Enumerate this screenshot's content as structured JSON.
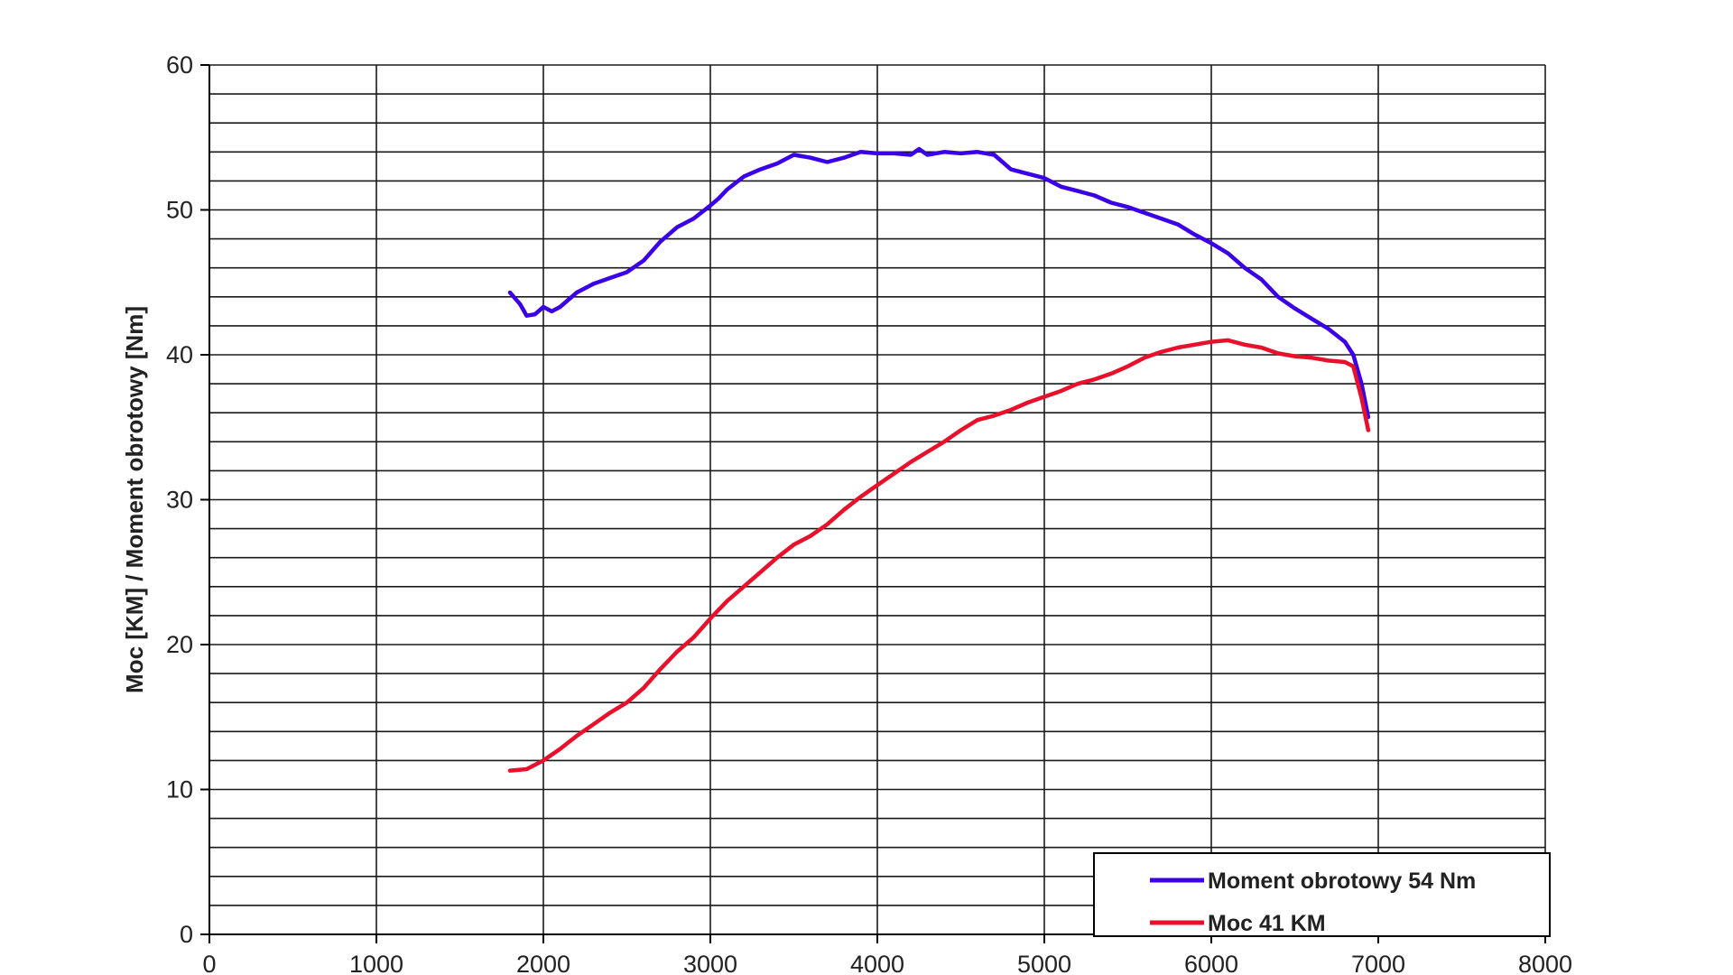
{
  "chart_data": {
    "type": "line",
    "title": "",
    "xlabel": "",
    "ylabel": "Moc [KM] / Moment obrotowy [Nm]",
    "xlim": [
      0,
      8000
    ],
    "ylim": [
      0,
      60
    ],
    "x_ticks": [
      "0",
      "1000",
      "2000",
      "3000",
      "4000",
      "5000",
      "6000",
      "7000",
      "8000"
    ],
    "y_ticks": [
      "0",
      "10",
      "20",
      "30",
      "40",
      "50",
      "60"
    ],
    "grid": {
      "vertical_step": 1000,
      "horizontal_step": 2
    },
    "legend_position": "bottom-right",
    "series": [
      {
        "name": "Moment obrotowy 54 Nm",
        "color": "#3a00e8",
        "points": [
          [
            1800,
            44.3
          ],
          [
            1860,
            43.5
          ],
          [
            1900,
            42.7
          ],
          [
            1950,
            42.8
          ],
          [
            2000,
            43.3
          ],
          [
            2050,
            43.0
          ],
          [
            2100,
            43.3
          ],
          [
            2200,
            44.3
          ],
          [
            2300,
            44.9
          ],
          [
            2400,
            45.3
          ],
          [
            2500,
            45.7
          ],
          [
            2600,
            46.5
          ],
          [
            2700,
            47.8
          ],
          [
            2800,
            48.8
          ],
          [
            2900,
            49.4
          ],
          [
            3000,
            50.3
          ],
          [
            3050,
            50.8
          ],
          [
            3100,
            51.4
          ],
          [
            3200,
            52.3
          ],
          [
            3300,
            52.8
          ],
          [
            3400,
            53.2
          ],
          [
            3500,
            53.8
          ],
          [
            3600,
            53.6
          ],
          [
            3700,
            53.3
          ],
          [
            3800,
            53.6
          ],
          [
            3900,
            54.0
          ],
          [
            4000,
            53.9
          ],
          [
            4100,
            53.9
          ],
          [
            4200,
            53.8
          ],
          [
            4250,
            54.2
          ],
          [
            4300,
            53.8
          ],
          [
            4400,
            54.0
          ],
          [
            4500,
            53.9
          ],
          [
            4600,
            54.0
          ],
          [
            4700,
            53.8
          ],
          [
            4800,
            52.8
          ],
          [
            4900,
            52.5
          ],
          [
            5000,
            52.2
          ],
          [
            5100,
            51.6
          ],
          [
            5200,
            51.3
          ],
          [
            5300,
            51.0
          ],
          [
            5400,
            50.5
          ],
          [
            5500,
            50.2
          ],
          [
            5600,
            49.8
          ],
          [
            5700,
            49.4
          ],
          [
            5800,
            49.0
          ],
          [
            5900,
            48.3
          ],
          [
            6000,
            47.7
          ],
          [
            6100,
            47.0
          ],
          [
            6200,
            46.0
          ],
          [
            6300,
            45.2
          ],
          [
            6400,
            44.0
          ],
          [
            6500,
            43.2
          ],
          [
            6600,
            42.5
          ],
          [
            6700,
            41.8
          ],
          [
            6800,
            40.9
          ],
          [
            6850,
            40.0
          ],
          [
            6900,
            38.0
          ],
          [
            6940,
            35.7
          ]
        ]
      },
      {
        "name": "Moc 41 KM",
        "color": "#e8102a",
        "points": [
          [
            1800,
            11.3
          ],
          [
            1900,
            11.4
          ],
          [
            2000,
            12.0
          ],
          [
            2100,
            12.8
          ],
          [
            2200,
            13.7
          ],
          [
            2300,
            14.5
          ],
          [
            2400,
            15.3
          ],
          [
            2500,
            16.0
          ],
          [
            2600,
            17.0
          ],
          [
            2700,
            18.3
          ],
          [
            2800,
            19.5
          ],
          [
            2900,
            20.5
          ],
          [
            3000,
            21.8
          ],
          [
            3100,
            23.0
          ],
          [
            3200,
            24.0
          ],
          [
            3300,
            25.0
          ],
          [
            3400,
            26.0
          ],
          [
            3500,
            26.9
          ],
          [
            3600,
            27.5
          ],
          [
            3700,
            28.3
          ],
          [
            3800,
            29.3
          ],
          [
            3900,
            30.2
          ],
          [
            4000,
            31.0
          ],
          [
            4100,
            31.8
          ],
          [
            4200,
            32.6
          ],
          [
            4300,
            33.3
          ],
          [
            4400,
            34.0
          ],
          [
            4500,
            34.8
          ],
          [
            4600,
            35.5
          ],
          [
            4700,
            35.8
          ],
          [
            4800,
            36.2
          ],
          [
            4900,
            36.7
          ],
          [
            5000,
            37.1
          ],
          [
            5100,
            37.5
          ],
          [
            5200,
            38.0
          ],
          [
            5300,
            38.3
          ],
          [
            5400,
            38.7
          ],
          [
            5500,
            39.2
          ],
          [
            5600,
            39.8
          ],
          [
            5700,
            40.2
          ],
          [
            5800,
            40.5
          ],
          [
            5900,
            40.7
          ],
          [
            6000,
            40.9
          ],
          [
            6100,
            41.0
          ],
          [
            6200,
            40.7
          ],
          [
            6300,
            40.5
          ],
          [
            6400,
            40.1
          ],
          [
            6500,
            39.9
          ],
          [
            6600,
            39.8
          ],
          [
            6700,
            39.6
          ],
          [
            6800,
            39.5
          ],
          [
            6850,
            39.2
          ],
          [
            6900,
            37.0
          ],
          [
            6940,
            34.8
          ]
        ]
      }
    ]
  }
}
